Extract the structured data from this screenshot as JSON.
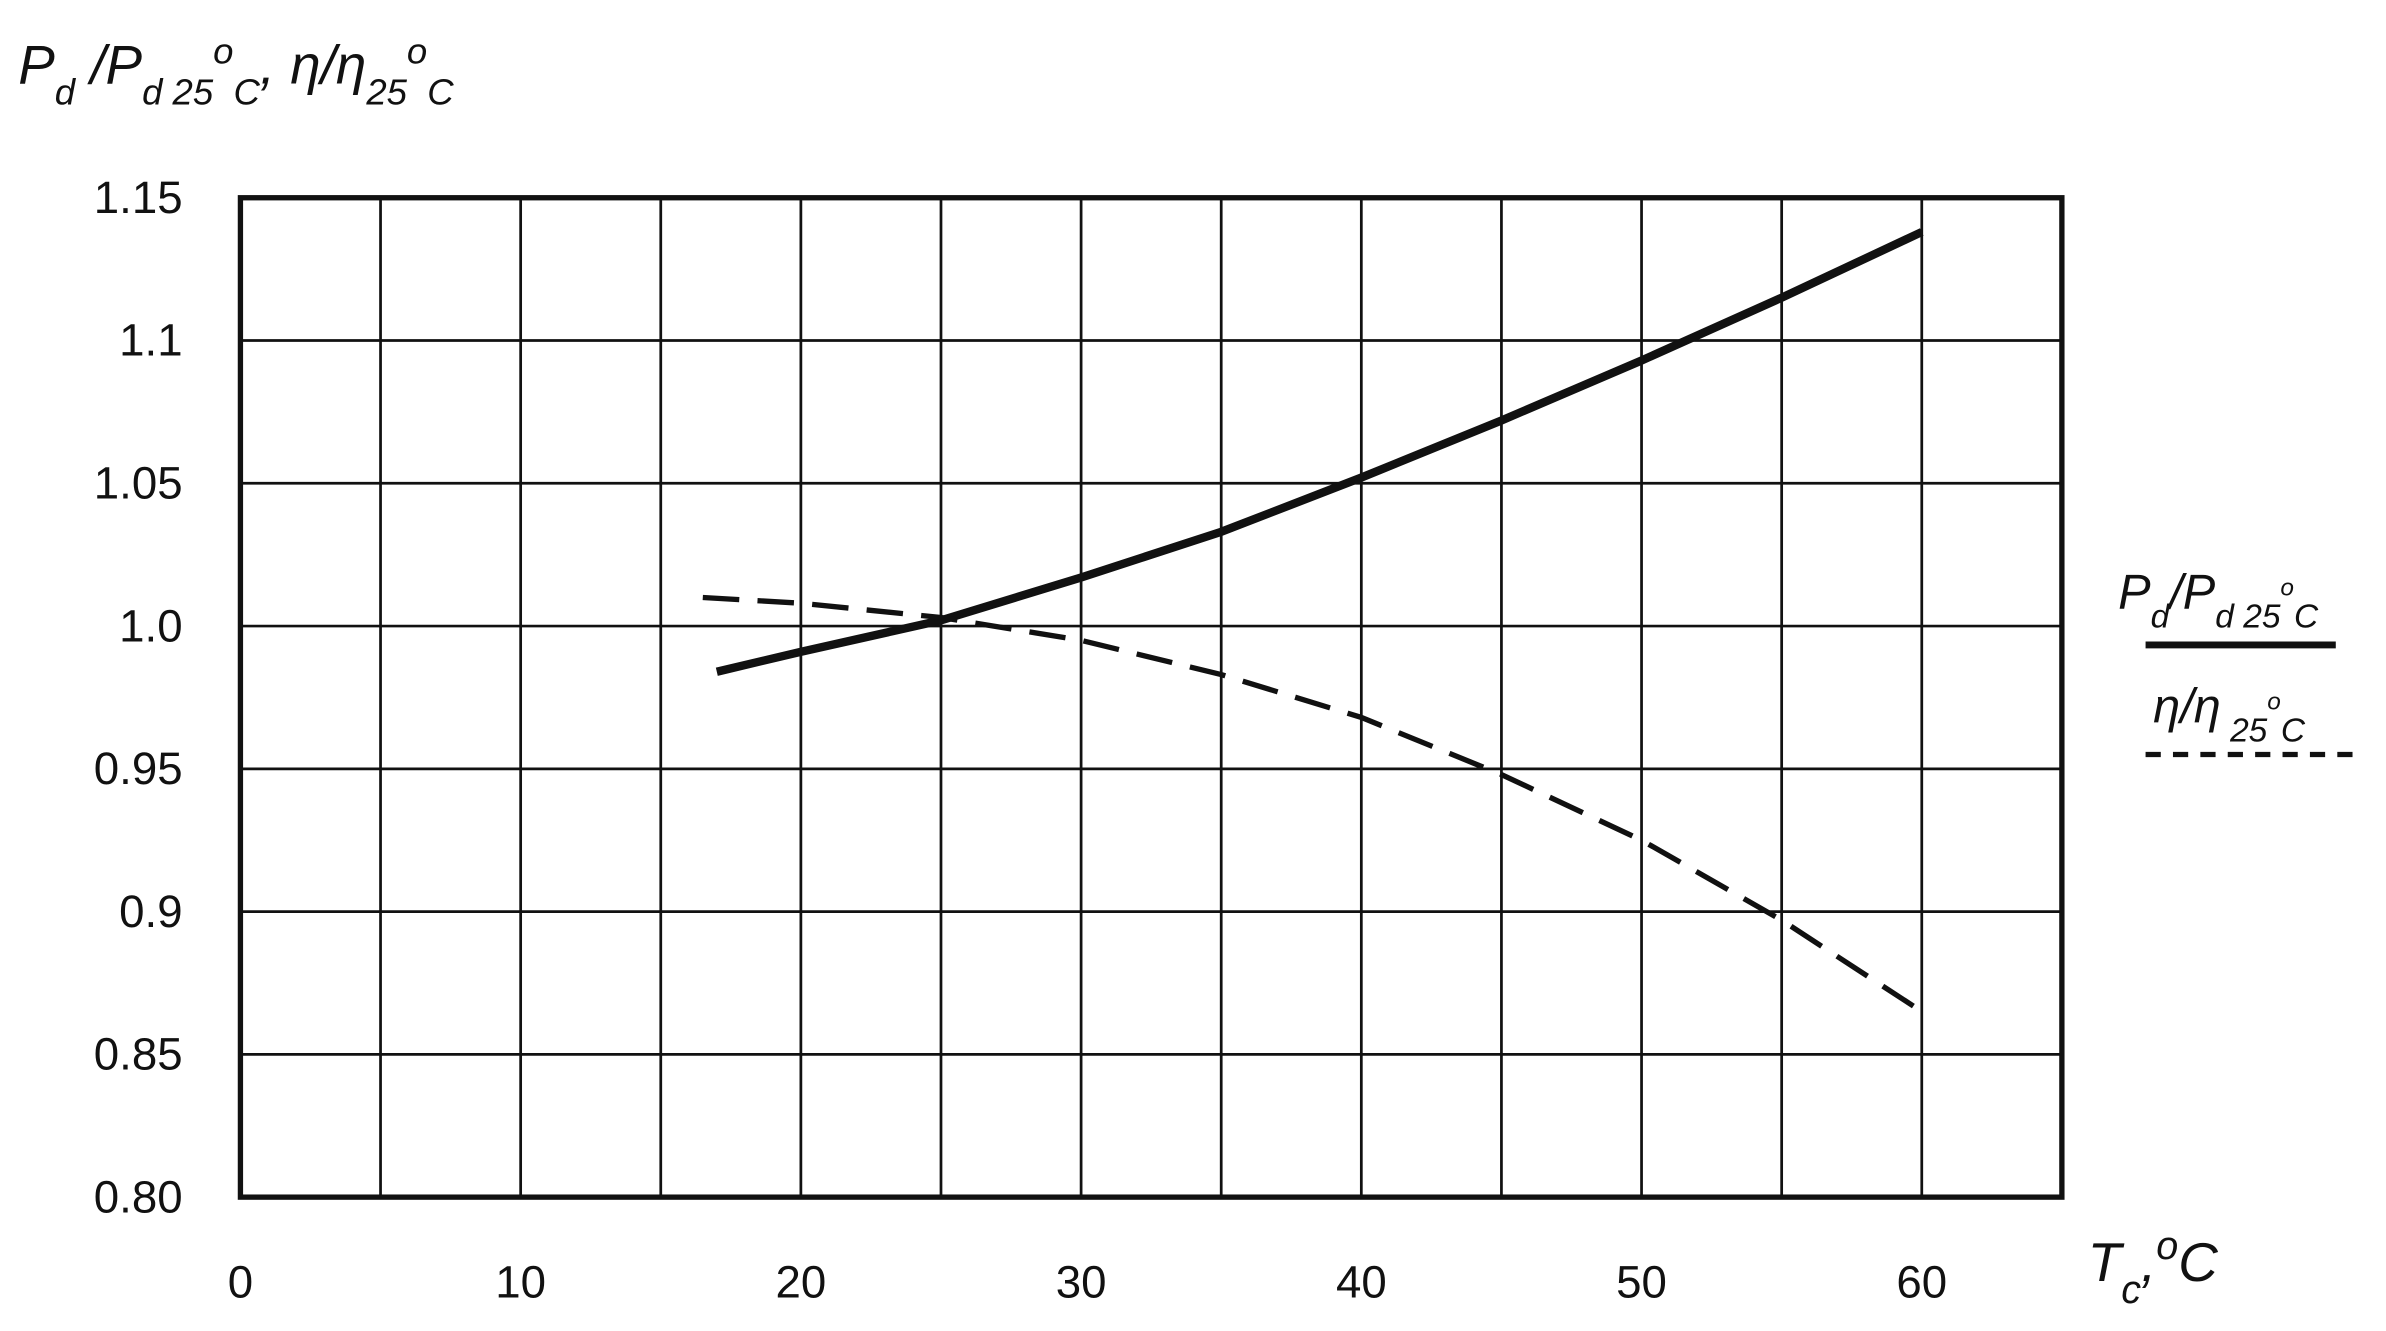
{
  "chart_data": {
    "type": "line",
    "y_label": [
      "P",
      "d",
      " /P",
      "d 25",
      "o",
      "C",
      ", η/η",
      "25",
      "o",
      "C"
    ],
    "x_label": [
      "T",
      "c",
      ",",
      "o",
      "C"
    ],
    "xlim": [
      0,
      65
    ],
    "xticks": [
      0,
      10,
      20,
      30,
      40,
      50,
      60
    ],
    "xgrid": [
      5,
      10,
      15,
      20,
      25,
      30,
      35,
      40,
      45,
      50,
      55,
      60
    ],
    "ylim": [
      0.8,
      1.15
    ],
    "yticks": [
      {
        "value": 0.8,
        "label": "0.80"
      },
      0.85,
      0.9,
      0.95,
      {
        "value": 1,
        "label": "1.0"
      },
      1.05,
      1.1,
      1.15
    ],
    "grid": true,
    "legend": "right",
    "series": [
      {
        "name": [
          "P",
          "d",
          "/P",
          "d 25",
          "o",
          "C"
        ],
        "color": "#111111",
        "style": "solid",
        "x": [
          17,
          20,
          25,
          30,
          35,
          40,
          45,
          50,
          55,
          60
        ],
        "values": [
          0.984,
          0.991,
          1.002,
          1.017,
          1.033,
          1.052,
          1.072,
          1.093,
          1.115,
          1.138
        ]
      },
      {
        "name": [
          "η",
          "/η",
          " 25",
          "o",
          "C"
        ],
        "color": "#111111",
        "style": "dashed",
        "x": [
          16.5,
          20,
          25,
          30,
          35,
          40,
          45,
          50,
          55,
          60
        ],
        "values": [
          1.01,
          1.008,
          1.003,
          0.995,
          0.983,
          0.968,
          0.948,
          0.925,
          0.897,
          0.865
        ]
      }
    ]
  }
}
